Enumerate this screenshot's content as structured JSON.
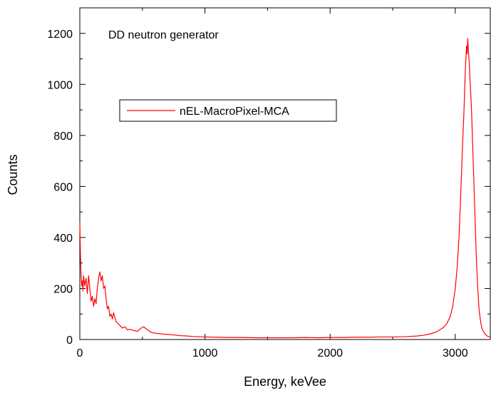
{
  "chart_data": {
    "type": "line",
    "annotation": "DD neutron generator",
    "xlabel": "Energy, keVee",
    "ylabel": "Counts",
    "xlim": [
      0,
      3280
    ],
    "ylim": [
      0,
      1300
    ],
    "xticks": [
      0,
      1000,
      2000,
      3000
    ],
    "yticks": [
      0,
      200,
      400,
      600,
      800,
      1000,
      1200
    ],
    "xminorticks": [
      500,
      1500,
      2500
    ],
    "yminorticks": [
      100,
      300,
      500,
      700,
      900,
      1100
    ],
    "legend": "upper left",
    "x": [
      0,
      5,
      10,
      15,
      20,
      25,
      30,
      40,
      50,
      60,
      70,
      80,
      90,
      100,
      110,
      120,
      130,
      140,
      150,
      160,
      170,
      180,
      190,
      200,
      210,
      220,
      230,
      240,
      250,
      260,
      270,
      280,
      290,
      300,
      320,
      340,
      360,
      380,
      400,
      430,
      460,
      490,
      510,
      530,
      550,
      570,
      600,
      650,
      700,
      750,
      800,
      850,
      900,
      1000,
      1100,
      1200,
      1300,
      1400,
      1500,
      1600,
      1700,
      1800,
      1900,
      2000,
      2100,
      2200,
      2300,
      2400,
      2500,
      2600,
      2700,
      2750,
      2800,
      2850,
      2900,
      2930,
      2960,
      2980,
      3000,
      3015,
      3030,
      3040,
      3050,
      3060,
      3070,
      3080,
      3090,
      3095,
      3100,
      3105,
      3110,
      3120,
      3130,
      3140,
      3150,
      3160,
      3170,
      3180,
      3190,
      3200,
      3210,
      3220,
      3240,
      3260,
      3280
    ],
    "series": [
      {
        "name": "nEL-MacroPixel-MCA",
        "color": "#ff0000",
        "values": [
          460,
          330,
          250,
          210,
          230,
          190,
          250,
          210,
          240,
          180,
          250,
          200,
          150,
          170,
          130,
          160,
          140,
          200,
          240,
          265,
          230,
          250,
          200,
          210,
          160,
          120,
          130,
          90,
          100,
          80,
          105,
          85,
          70,
          65,
          55,
          45,
          50,
          38,
          40,
          35,
          32,
          45,
          50,
          42,
          35,
          28,
          25,
          22,
          20,
          18,
          15,
          14,
          12,
          10,
          9,
          8,
          8,
          7,
          7,
          7,
          7,
          8,
          7,
          8,
          8,
          9,
          9,
          10,
          10,
          11,
          14,
          17,
          22,
          30,
          45,
          60,
          90,
          130,
          200,
          280,
          400,
          520,
          650,
          780,
          900,
          1050,
          1150,
          1120,
          1180,
          1130,
          1100,
          1000,
          900,
          750,
          600,
          450,
          300,
          200,
          120,
          80,
          50,
          35,
          20,
          12,
          10
        ]
      }
    ]
  }
}
